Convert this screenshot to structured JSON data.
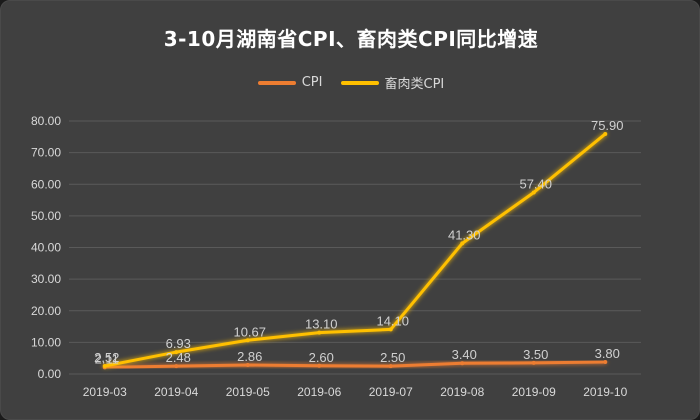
{
  "colors": {
    "background": "#404040",
    "cpi": "#ed7d31",
    "meat_cpi": "#ffc000",
    "grid": "#5a5a5a",
    "text": "#d9d9d9"
  },
  "chart_data": {
    "type": "line",
    "title": "3-10月湖南省CPI、畜肉类CPI同比增速",
    "xlabel": "",
    "ylabel": "",
    "categories": [
      "2019-03",
      "2019-04",
      "2019-05",
      "2019-06",
      "2019-07",
      "2019-08",
      "2019-09",
      "2019-10"
    ],
    "ylim": [
      0,
      80
    ],
    "yticks": [
      "0.00",
      "10.00",
      "20.00",
      "30.00",
      "40.00",
      "50.00",
      "60.00",
      "70.00",
      "80.00"
    ],
    "grid": true,
    "legend_position": "top",
    "series": [
      {
        "name": "CPI",
        "color": "#ed7d31",
        "values": [
          2.11,
          2.48,
          2.86,
          2.6,
          2.5,
          3.4,
          3.5,
          3.8
        ],
        "labels": [
          "2.11",
          "2.48",
          "2.86",
          "2.60",
          "2.50",
          "3.40",
          "3.50",
          "3.80"
        ]
      },
      {
        "name": "畜肉类CPI",
        "color": "#ffc000",
        "values": [
          2.52,
          6.93,
          10.67,
          13.1,
          14.1,
          41.3,
          57.4,
          75.9
        ],
        "labels": [
          "2.52",
          "6.93",
          "10.67",
          "13.10",
          "14.10",
          "41.30",
          "57.40",
          "75.90"
        ]
      }
    ]
  }
}
